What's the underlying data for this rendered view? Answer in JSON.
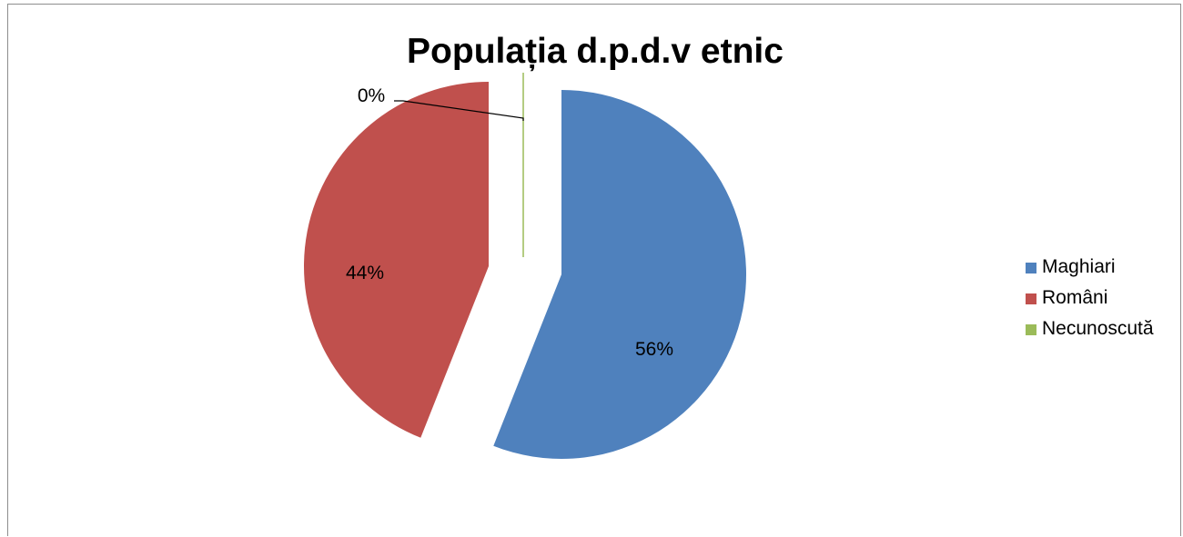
{
  "chart_data": {
    "type": "pie",
    "title": "Populația d.p.d.v etnic",
    "categories": [
      "Maghiari",
      "Români",
      "Necunoscută"
    ],
    "values": [
      56,
      44,
      0
    ],
    "data_labels": [
      "56%",
      "44%",
      "0%"
    ],
    "colors": [
      "#4f81bd",
      "#c0504d",
      "#9bbb59"
    ],
    "exploded": true,
    "legend_position": "right"
  }
}
